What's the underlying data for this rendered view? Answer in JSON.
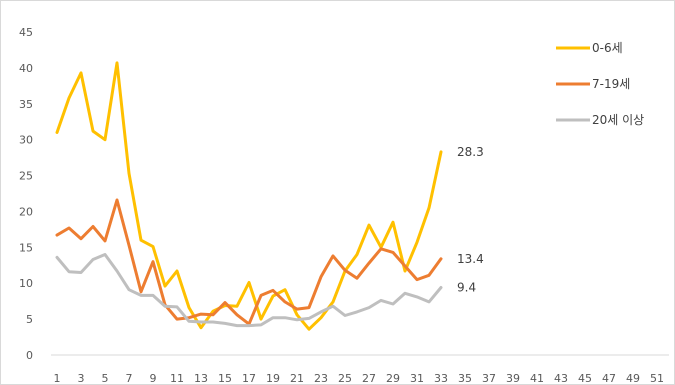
{
  "chart_data": {
    "type": "line",
    "title": "",
    "xlabel": "",
    "ylabel": "",
    "ylim": [
      0,
      45
    ],
    "xlim": [
      1,
      52
    ],
    "yticks": [
      0,
      5,
      10,
      15,
      20,
      25,
      30,
      35,
      40,
      45
    ],
    "xticks": [
      1,
      3,
      5,
      7,
      9,
      11,
      13,
      15,
      17,
      19,
      21,
      23,
      25,
      27,
      29,
      31,
      33,
      35,
      37,
      39,
      41,
      43,
      45,
      47,
      49,
      51
    ],
    "grid": false,
    "legend_position": "top-right",
    "x": [
      1,
      2,
      3,
      4,
      5,
      6,
      7,
      8,
      9,
      10,
      11,
      12,
      13,
      14,
      15,
      16,
      17,
      18,
      19,
      20,
      21,
      22,
      23,
      24,
      25,
      26,
      27,
      28,
      29,
      30,
      31,
      32,
      33
    ],
    "series": [
      {
        "name": "0-6세",
        "color": "#ffc000",
        "values": [
          31,
          35.8,
          39.3,
          31.2,
          30,
          40.7,
          25.3,
          16,
          15.1,
          9.6,
          11.7,
          6.6,
          3.8,
          6.1,
          6.9,
          6.8,
          10.1,
          5,
          8.2,
          9.1,
          5.6,
          3.6,
          5.2,
          7.4,
          11.7,
          14,
          18.1,
          15,
          18.5,
          11.7,
          15.7,
          20.5,
          28.3
        ],
        "end_label": "28.3"
      },
      {
        "name": "7-19세",
        "color": "#ed7d31",
        "values": [
          16.7,
          17.7,
          16.2,
          17.9,
          15.9,
          21.6,
          15.3,
          8.8,
          13,
          7,
          5,
          5.2,
          5.7,
          5.6,
          7.3,
          5.6,
          4.3,
          8.3,
          9,
          7.4,
          6.4,
          6.6,
          10.9,
          13.8,
          11.8,
          10.7,
          12.8,
          14.8,
          14.3,
          12.4,
          10.5,
          11.1,
          13.4
        ],
        "end_label": "13.4"
      },
      {
        "name": "20세 이상",
        "color": "#bfbfbf",
        "values": [
          13.6,
          11.6,
          11.5,
          13.3,
          14,
          11.7,
          9.1,
          8.3,
          8.3,
          6.8,
          6.7,
          4.7,
          4.6,
          4.6,
          4.4,
          4.1,
          4.1,
          4.2,
          5.2,
          5.2,
          4.9,
          5.1,
          6,
          6.8,
          5.5,
          6,
          6.6,
          7.6,
          7.1,
          8.6,
          8.1,
          7.4,
          9.4
        ],
        "end_label": "9.4"
      }
    ]
  }
}
